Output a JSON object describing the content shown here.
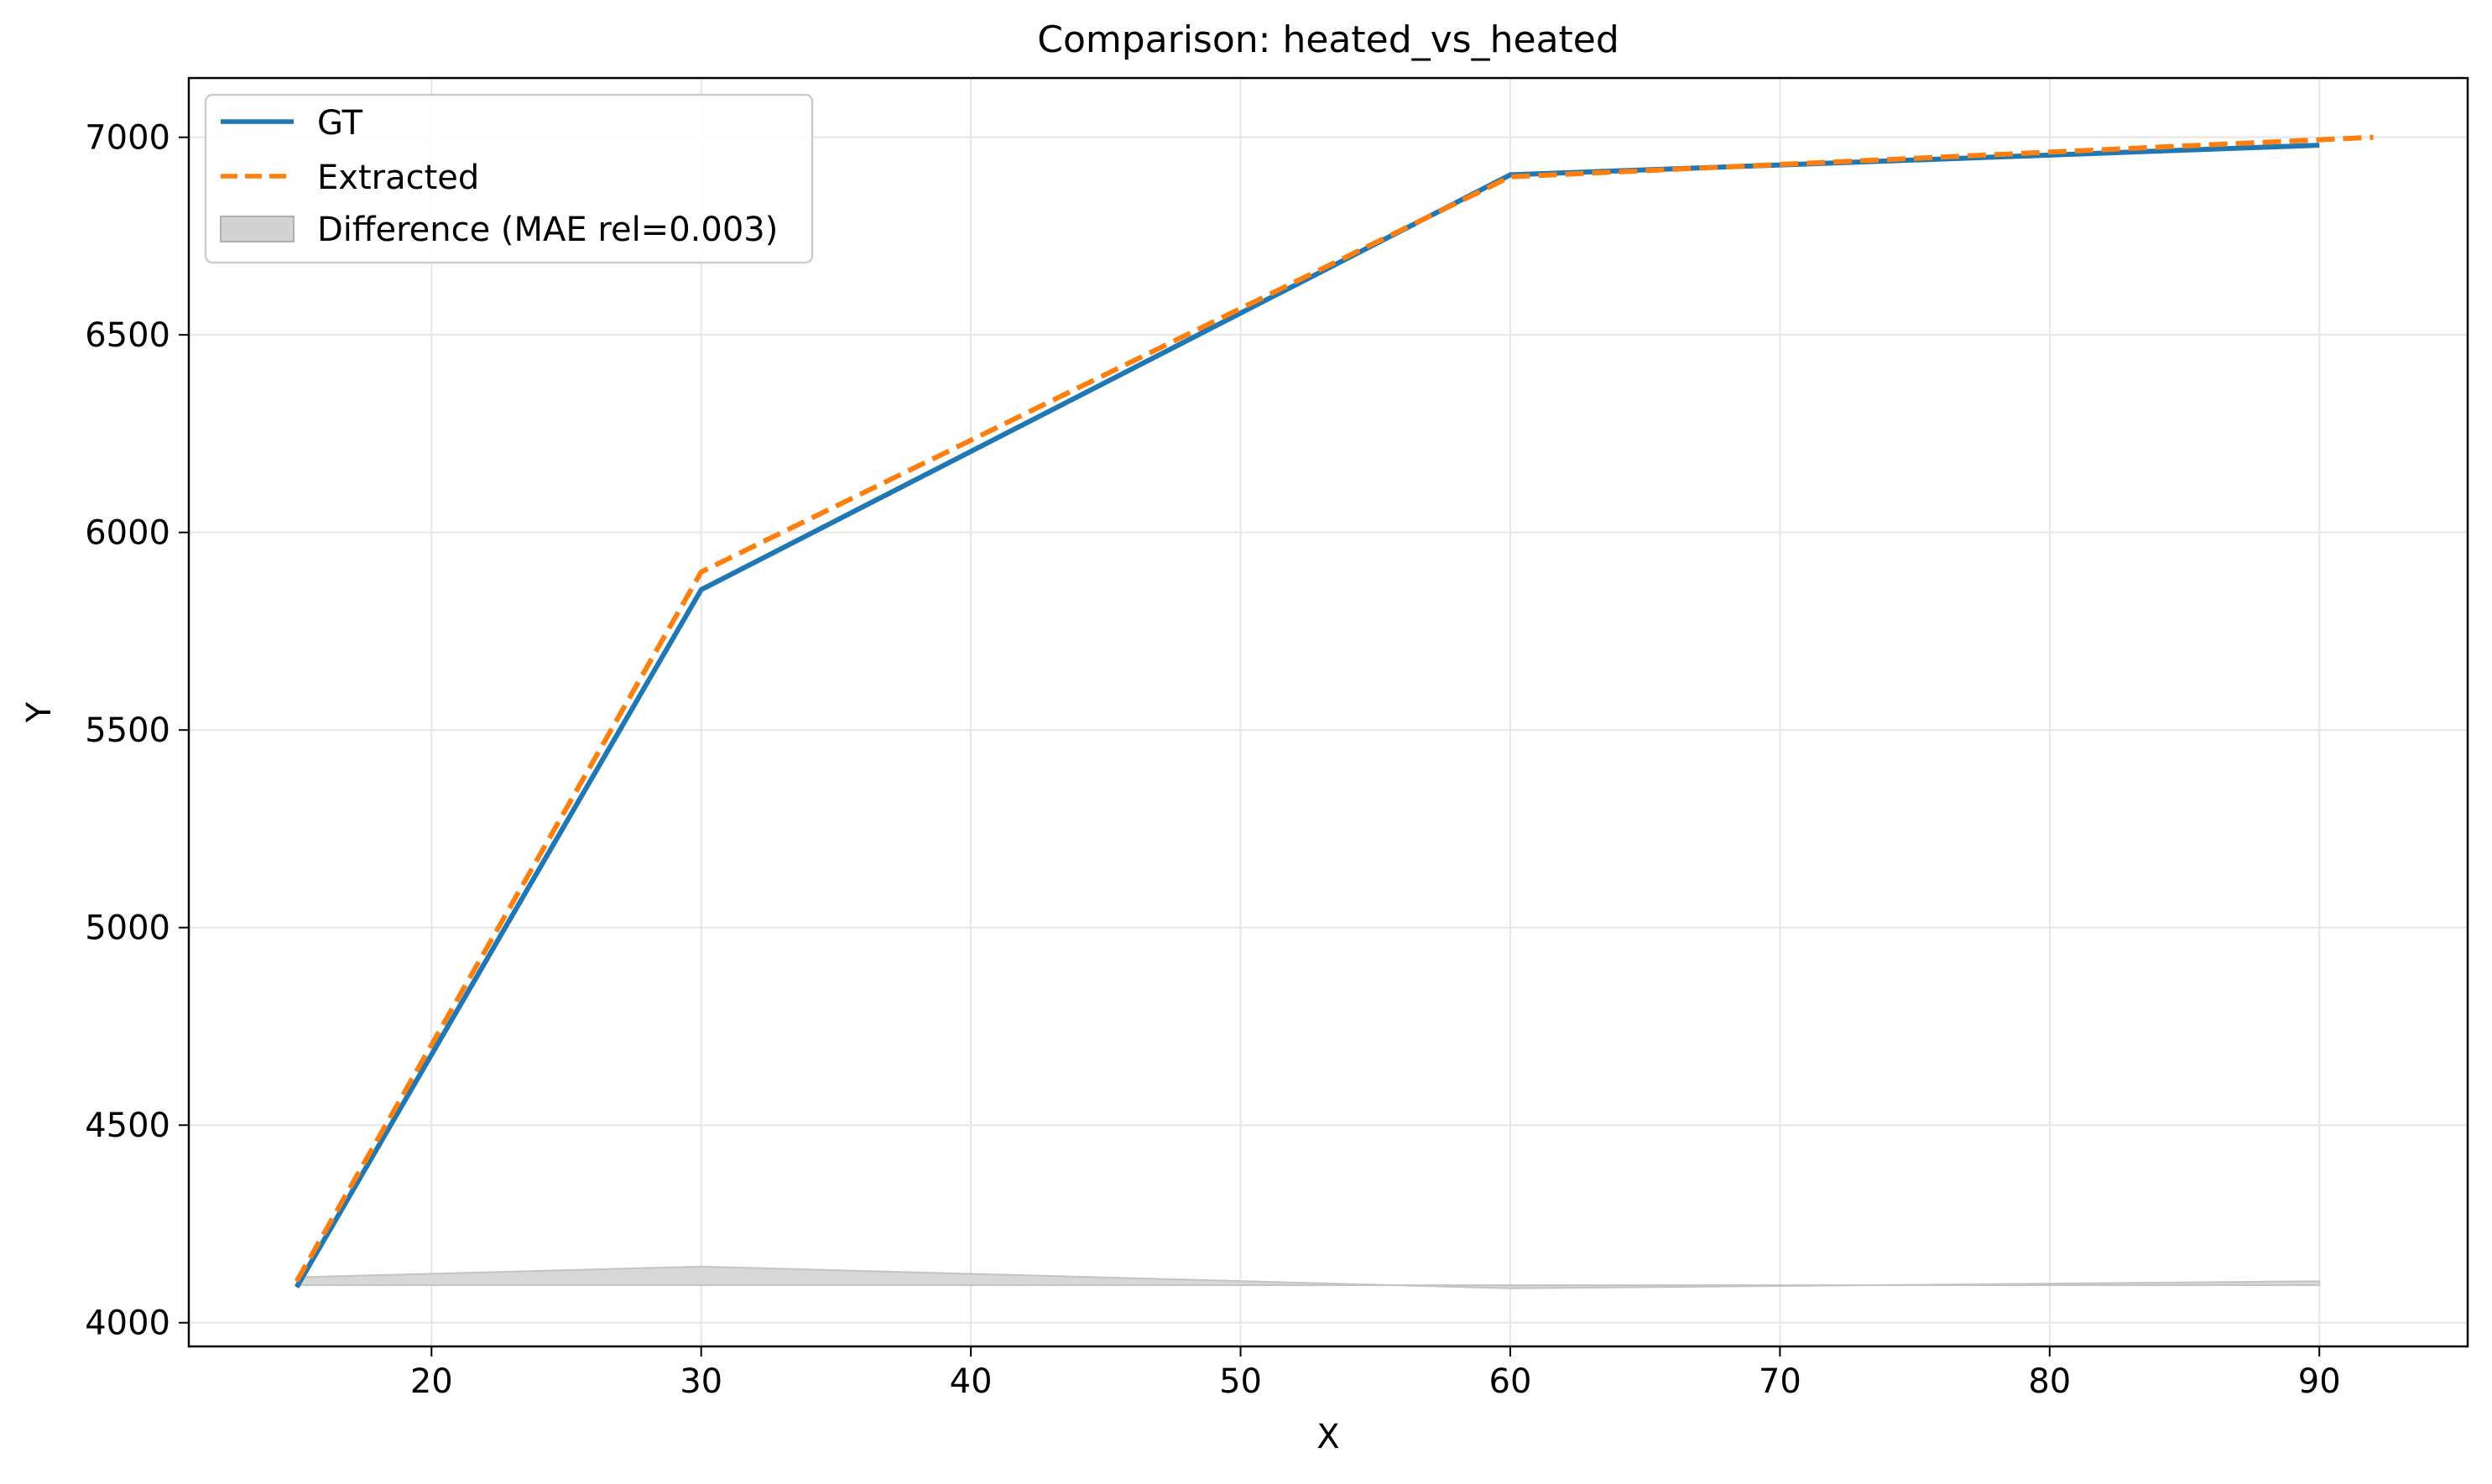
{
  "chart_data": {
    "type": "line",
    "title": "Comparison: heated_vs_heated",
    "xlabel": "X",
    "ylabel": "Y",
    "xlim": [
      11,
      95.5
    ],
    "ylim": [
      3940,
      7150
    ],
    "xticks": [
      20,
      30,
      40,
      50,
      60,
      70,
      80,
      90
    ],
    "yticks": [
      4000,
      4500,
      5000,
      5500,
      6000,
      6500,
      7000
    ],
    "grid": true,
    "legend_position": "top-left",
    "series": [
      {
        "name": "GT",
        "style": "solid",
        "color": "#1f77b4",
        "x": [
          15,
          30,
          60,
          90
        ],
        "y": [
          4090,
          5855,
          6905,
          6980
        ]
      },
      {
        "name": "Extracted",
        "style": "dashed",
        "color": "#ff7f0e",
        "x": [
          15,
          30,
          60,
          92
        ],
        "y": [
          4105,
          5900,
          6900,
          7000
        ]
      }
    ],
    "difference": {
      "name": "Difference (MAE rel=0.003)",
      "color": "#d3d3d3",
      "baseline": 4095,
      "x": [
        15,
        30,
        60,
        90
      ],
      "y": [
        4115,
        4142,
        4087,
        4105
      ]
    }
  }
}
